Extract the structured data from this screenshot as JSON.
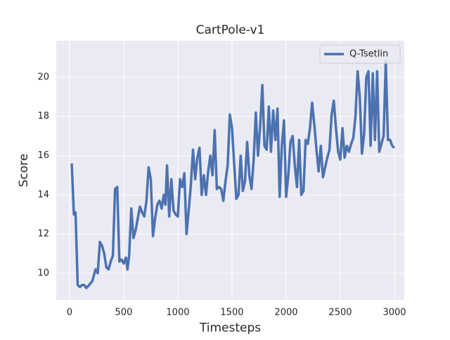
{
  "chart_data": {
    "type": "line",
    "title": "CartPole-v1",
    "x_label": "Timesteps",
    "y_label": "Score",
    "x": [
      20,
      40,
      55,
      75,
      95,
      115,
      135,
      155,
      180,
      210,
      240,
      260,
      280,
      300,
      320,
      340,
      360,
      380,
      400,
      420,
      440,
      460,
      480,
      500,
      520,
      535,
      550,
      570,
      590,
      610,
      630,
      650,
      670,
      690,
      710,
      730,
      750,
      770,
      790,
      810,
      830,
      850,
      870,
      885,
      900,
      920,
      940,
      960,
      980,
      1000,
      1020,
      1040,
      1060,
      1080,
      1100,
      1120,
      1140,
      1160,
      1180,
      1200,
      1220,
      1240,
      1260,
      1280,
      1300,
      1320,
      1340,
      1360,
      1380,
      1400,
      1420,
      1440,
      1460,
      1480,
      1500,
      1520,
      1540,
      1560,
      1580,
      1600,
      1620,
      1640,
      1660,
      1680,
      1700,
      1720,
      1740,
      1760,
      1780,
      1800,
      1820,
      1840,
      1860,
      1880,
      1900,
      1920,
      1940,
      1960,
      1980,
      2000,
      2020,
      2040,
      2060,
      2080,
      2100,
      2120,
      2140,
      2160,
      2180,
      2200,
      2220,
      2240,
      2260,
      2280,
      2300,
      2320,
      2340,
      2360,
      2380,
      2400,
      2420,
      2440,
      2460,
      2480,
      2500,
      2520,
      2540,
      2560,
      2580,
      2600,
      2620,
      2640,
      2660,
      2680,
      2700,
      2720,
      2740,
      2760,
      2780,
      2800,
      2820,
      2840,
      2860,
      2880,
      2900,
      2920,
      2940,
      2960,
      2980,
      3000
    ],
    "series": [
      {
        "name": "Q-Tsetlin",
        "color": "#4c72b0",
        "values": [
          15.6,
          13.0,
          13.1,
          9.4,
          9.3,
          9.4,
          9.4,
          9.25,
          9.4,
          9.6,
          10.2,
          10.0,
          11.6,
          11.4,
          11.0,
          10.3,
          10.2,
          10.6,
          10.9,
          14.3,
          14.4,
          10.6,
          10.7,
          10.5,
          10.8,
          10.2,
          10.9,
          13.3,
          11.8,
          12.2,
          12.8,
          13.4,
          13.1,
          12.9,
          13.7,
          15.4,
          14.8,
          11.9,
          12.8,
          13.5,
          13.7,
          13.3,
          14.0,
          13.5,
          15.5,
          12.9,
          14.8,
          13.2,
          13.0,
          12.9,
          14.8,
          14.4,
          15.1,
          12.0,
          13.2,
          14.5,
          16.3,
          14.8,
          15.9,
          16.4,
          14.0,
          15.0,
          14.0,
          15.2,
          16.0,
          15.0,
          17.3,
          14.3,
          14.4,
          14.3,
          13.7,
          14.7,
          15.5,
          18.1,
          17.4,
          15.6,
          13.8,
          14.0,
          16.0,
          14.2,
          14.7,
          16.7,
          15.0,
          14.3,
          15.8,
          18.2,
          16.0,
          17.5,
          19.6,
          16.5,
          16.3,
          18.5,
          16.2,
          18.3,
          16.8,
          18.4,
          13.9,
          16.5,
          17.8,
          13.9,
          15.0,
          16.7,
          17.0,
          15.5,
          14.4,
          16.8,
          14.0,
          14.2,
          16.8,
          16.6,
          17.4,
          18.7,
          17.6,
          16.3,
          15.2,
          16.5,
          14.9,
          15.4,
          15.9,
          16.3,
          18.1,
          18.8,
          17.4,
          16.2,
          15.8,
          17.4,
          15.9,
          16.5,
          16.2,
          16.6,
          16.9,
          18.0,
          20.3,
          19.0,
          16.1,
          17.1,
          20.0,
          20.3,
          16.5,
          20.2,
          16.8,
          20.3,
          16.2,
          16.6,
          17.0,
          20.8,
          16.8,
          16.8,
          16.5,
          16.4
        ]
      }
    ],
    "xlim": [
      -123,
      3091
    ],
    "xticks": [
      0,
      500,
      1000,
      1500,
      2000,
      2500,
      3000
    ],
    "ylim": [
      8.64,
      21.86
    ],
    "yticks": [
      10,
      12,
      14,
      16,
      18,
      20
    ],
    "grid": true,
    "legend": "upper right"
  }
}
